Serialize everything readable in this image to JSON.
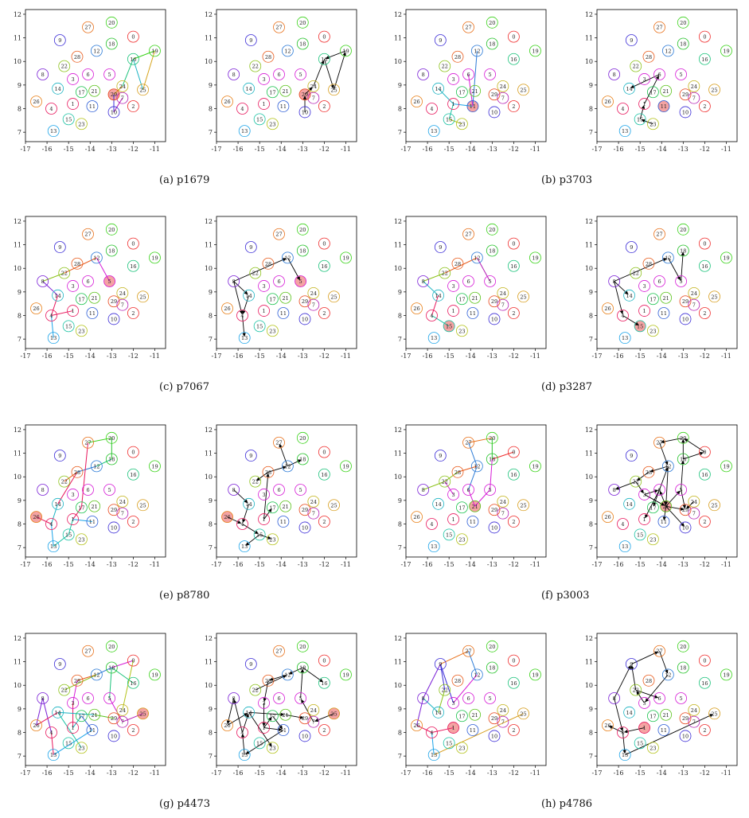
{
  "chart_data": {
    "type": "scatter",
    "x_ticks": [
      "-17",
      "-16",
      "-15",
      "-14",
      "-13",
      "-12",
      "-11"
    ],
    "y_ticks": [
      "7",
      "8",
      "9",
      "10",
      "11",
      "12"
    ],
    "xlim": [
      -17,
      -10.5
    ],
    "ylim": [
      6.6,
      12.2
    ],
    "nodes": [
      {
        "id": "0",
        "x": -12.0,
        "y": 11.05,
        "color": "#ef2b2b"
      },
      {
        "id": "1",
        "x": -14.8,
        "y": 8.2,
        "color": "#e8175d"
      },
      {
        "id": "2",
        "x": -12.0,
        "y": 8.1,
        "color": "#ef2b2b"
      },
      {
        "id": "3",
        "x": -14.8,
        "y": 9.25,
        "color": "#d61ad6"
      },
      {
        "id": "4",
        "x": -15.8,
        "y": 8.0,
        "color": "#e8175d"
      },
      {
        "id": "5",
        "x": -13.1,
        "y": 9.45,
        "color": "#d61ad6"
      },
      {
        "id": "6",
        "x": -14.1,
        "y": 9.45,
        "color": "#d61ad6"
      },
      {
        "id": "7",
        "x": -12.5,
        "y": 8.45,
        "color": "#b31ab3"
      },
      {
        "id": "8",
        "x": -16.2,
        "y": 9.45,
        "color": "#7a1fd6"
      },
      {
        "id": "9",
        "x": -15.4,
        "y": 10.9,
        "color": "#3a2bd6"
      },
      {
        "id": "10",
        "x": -12.9,
        "y": 7.85,
        "color": "#3a2bd6"
      },
      {
        "id": "11",
        "x": -13.9,
        "y": 8.1,
        "color": "#2b5cd6"
      },
      {
        "id": "12",
        "x": -13.7,
        "y": 10.45,
        "color": "#2b7ad6"
      },
      {
        "id": "13",
        "x": -15.7,
        "y": 7.05,
        "color": "#1aa3e8"
      },
      {
        "id": "14",
        "x": -15.5,
        "y": 8.85,
        "color": "#1ab3c2"
      },
      {
        "id": "15",
        "x": -15.0,
        "y": 7.55,
        "color": "#1ac2a3"
      },
      {
        "id": "16",
        "x": -12.0,
        "y": 10.1,
        "color": "#1ac27a"
      },
      {
        "id": "17",
        "x": -14.4,
        "y": 8.7,
        "color": "#1ac24d"
      },
      {
        "id": "18",
        "x": -13.0,
        "y": 10.75,
        "color": "#26c22b"
      },
      {
        "id": "19",
        "x": -11.0,
        "y": 10.45,
        "color": "#3ad21a"
      },
      {
        "id": "20",
        "x": -13.0,
        "y": 11.65,
        "color": "#3ad21a"
      },
      {
        "id": "21",
        "x": -13.8,
        "y": 8.75,
        "color": "#5ac21a"
      },
      {
        "id": "22",
        "x": -15.2,
        "y": 9.8,
        "color": "#8cc21a"
      },
      {
        "id": "23",
        "x": -14.4,
        "y": 7.35,
        "color": "#b3c21a"
      },
      {
        "id": "24",
        "x": -12.5,
        "y": 8.95,
        "color": "#c2b31a"
      },
      {
        "id": "25",
        "x": -11.55,
        "y": 8.8,
        "color": "#d69c1a"
      },
      {
        "id": "26",
        "x": -16.5,
        "y": 8.3,
        "color": "#e8801a"
      },
      {
        "id": "27",
        "x": -14.1,
        "y": 11.45,
        "color": "#e8701a"
      },
      {
        "id": "28",
        "x": -14.6,
        "y": 10.2,
        "color": "#e85a1a"
      },
      {
        "id": "29",
        "x": -12.9,
        "y": 8.6,
        "color": "#e8451a"
      }
    ],
    "panels": [
      {
        "caption": "(a)  p1679",
        "highlight": "29",
        "color_edges": [
          [
            "29",
            "24",
            "#d6a31a"
          ],
          [
            "24",
            "16",
            "#1ac27a"
          ],
          [
            "16",
            "25",
            "#1ab3c2"
          ],
          [
            "25",
            "19",
            "#d6a31a"
          ],
          [
            "19",
            "16",
            "#3ad21a"
          ],
          [
            "29",
            "10",
            "#3a2bd6"
          ],
          [
            "10",
            "7",
            "#b31ab3"
          ]
        ],
        "black_edges": [
          [
            "10",
            "29"
          ],
          [
            "29",
            "24"
          ],
          [
            "24",
            "16"
          ],
          [
            "16",
            "25"
          ],
          [
            "25",
            "19"
          ],
          [
            "19",
            "16"
          ]
        ]
      },
      {
        "caption": "(b)  p3703",
        "highlight": "11",
        "color_edges": [
          [
            "11",
            "12",
            "#2b7ad6"
          ],
          [
            "11",
            "1",
            "#1aa3e8"
          ],
          [
            "1",
            "15",
            "#1ac2a3"
          ],
          [
            "15",
            "23",
            "#b3c21a"
          ],
          [
            "1",
            "14",
            "#1ab3c2"
          ],
          [
            "11",
            "6",
            "#d61ad6"
          ]
        ],
        "black_edges": [
          [
            "23",
            "15"
          ],
          [
            "15",
            "1"
          ],
          [
            "1",
            "6"
          ],
          [
            "6",
            "14"
          ]
        ]
      },
      {
        "caption": "(c)  p7067",
        "highlight": "5",
        "color_edges": [
          [
            "8",
            "22",
            "#8cc21a"
          ],
          [
            "22",
            "12",
            "#e85a1a"
          ],
          [
            "12",
            "5",
            "#d61ad6"
          ],
          [
            "8",
            "14",
            "#7a1fd6"
          ],
          [
            "14",
            "4",
            "#e8175d"
          ],
          [
            "4",
            "13",
            "#1aa3e8"
          ],
          [
            "4",
            "1",
            "#e8175d"
          ]
        ],
        "black_edges": [
          [
            "8",
            "12"
          ],
          [
            "12",
            "5"
          ],
          [
            "8",
            "14"
          ],
          [
            "14",
            "4"
          ],
          [
            "4",
            "13"
          ],
          [
            "8",
            "4"
          ]
        ]
      },
      {
        "caption": "(d)  p3287",
        "highlight": "15",
        "color_edges": [
          [
            "8",
            "22",
            "#8cc21a"
          ],
          [
            "22",
            "12",
            "#e85a1a"
          ],
          [
            "12",
            "5",
            "#b31ab3"
          ],
          [
            "8",
            "14",
            "#1ab3c2"
          ],
          [
            "14",
            "4",
            "#e8175d"
          ],
          [
            "4",
            "15",
            "#1ac2a3"
          ]
        ],
        "black_edges": [
          [
            "8",
            "12"
          ],
          [
            "12",
            "5"
          ],
          [
            "5",
            "18"
          ],
          [
            "8",
            "14"
          ],
          [
            "8",
            "4"
          ],
          [
            "4",
            "15"
          ]
        ]
      },
      {
        "caption": "(e)  p8780",
        "highlight": "26",
        "color_edges": [
          [
            "26",
            "4",
            "#e8175d"
          ],
          [
            "4",
            "14",
            "#1ab3c2"
          ],
          [
            "14",
            "28",
            "#e8175d"
          ],
          [
            "28",
            "22",
            "#e85a1a"
          ],
          [
            "28",
            "12",
            "#2b7ad6"
          ],
          [
            "12",
            "18",
            "#1ac27a"
          ],
          [
            "18",
            "20",
            "#26c22b"
          ],
          [
            "20",
            "27",
            "#3ad21a"
          ],
          [
            "27",
            "17",
            "#e8175d"
          ],
          [
            "17",
            "1",
            "#e8175d"
          ],
          [
            "1",
            "11",
            "#1aa3e8"
          ],
          [
            "4",
            "13",
            "#1aa3e8"
          ],
          [
            "13",
            "15",
            "#1ac2a3"
          ],
          [
            "15",
            "1",
            "#1ac2a3"
          ]
        ],
        "black_edges": [
          [
            "26",
            "4"
          ],
          [
            "4",
            "15"
          ],
          [
            "15",
            "13"
          ],
          [
            "15",
            "23"
          ],
          [
            "1",
            "28"
          ],
          [
            "28",
            "22"
          ],
          [
            "28",
            "12"
          ],
          [
            "12",
            "27"
          ],
          [
            "12",
            "18"
          ],
          [
            "8",
            "14"
          ],
          [
            "14",
            "4"
          ],
          [
            "1",
            "17"
          ]
        ]
      },
      {
        "caption": "(f)  p3003",
        "highlight": "21",
        "color_edges": [
          [
            "21",
            "6",
            "#d61ad6"
          ],
          [
            "6",
            "12",
            "#2b7ad6"
          ],
          [
            "12",
            "28",
            "#e85a1a"
          ],
          [
            "28",
            "22",
            "#8cc21a"
          ],
          [
            "22",
            "3",
            "#d61ad6"
          ],
          [
            "21",
            "5",
            "#d61ad6"
          ],
          [
            "5",
            "18",
            "#d61ad6"
          ],
          [
            "18",
            "0",
            "#ef2b2b"
          ],
          [
            "18",
            "20",
            "#26c22b"
          ],
          [
            "20",
            "27",
            "#e8701a"
          ],
          [
            "27",
            "12",
            "#2b7ad6"
          ],
          [
            "8",
            "22",
            "#8cc21a"
          ]
        ],
        "black_edges": [
          [
            "21",
            "6"
          ],
          [
            "6",
            "12"
          ],
          [
            "12",
            "28"
          ],
          [
            "28",
            "22"
          ],
          [
            "22",
            "8"
          ],
          [
            "22",
            "3"
          ],
          [
            "3",
            "6"
          ],
          [
            "21",
            "5"
          ],
          [
            "5",
            "18"
          ],
          [
            "18",
            "20"
          ],
          [
            "20",
            "27"
          ],
          [
            "27",
            "12"
          ],
          [
            "18",
            "0"
          ],
          [
            "6",
            "1"
          ],
          [
            "21",
            "11"
          ],
          [
            "21",
            "10"
          ],
          [
            "6",
            "17"
          ],
          [
            "5",
            "29"
          ],
          [
            "24",
            "29"
          ],
          [
            "0",
            "20"
          ],
          [
            "12",
            "21"
          ],
          [
            "3",
            "21"
          ],
          [
            "21",
            "29"
          ]
        ]
      },
      {
        "caption": "(g)  p4473",
        "highlight": "25",
        "color_edges": [
          [
            "25",
            "7",
            "#b31ab3"
          ],
          [
            "7",
            "5",
            "#d61ad6"
          ],
          [
            "5",
            "18",
            "#1ac27a"
          ],
          [
            "18",
            "16",
            "#1ac27a"
          ],
          [
            "18",
            "0",
            "#d61ad6"
          ],
          [
            "0",
            "24",
            "#b3c21a"
          ],
          [
            "18",
            "12",
            "#2b7ad6"
          ],
          [
            "12",
            "28",
            "#e85a1a"
          ],
          [
            "28",
            "3",
            "#d61ad6"
          ],
          [
            "3",
            "1",
            "#e8175d"
          ],
          [
            "1",
            "17",
            "#1ab3c2"
          ],
          [
            "17",
            "11",
            "#2b5cd6"
          ],
          [
            "11",
            "13",
            "#1aa3e8"
          ],
          [
            "13",
            "4",
            "#e8175d"
          ],
          [
            "4",
            "8",
            "#7a1fd6"
          ],
          [
            "8",
            "26",
            "#7a1fd6"
          ],
          [
            "14",
            "23",
            "#1ac2a3"
          ],
          [
            "22",
            "12",
            "#8cc21a"
          ],
          [
            "26",
            "14",
            "#e8175d"
          ],
          [
            "14",
            "21",
            "#1ab3c2"
          ],
          [
            "21",
            "29",
            "#5ac21a"
          ]
        ],
        "black_edges": [
          [
            "25",
            "7"
          ],
          [
            "7",
            "5"
          ],
          [
            "5",
            "18"
          ],
          [
            "18",
            "16"
          ],
          [
            "18",
            "12"
          ],
          [
            "12",
            "28"
          ],
          [
            "28",
            "3"
          ],
          [
            "3",
            "1"
          ],
          [
            "1",
            "17"
          ],
          [
            "17",
            "11"
          ],
          [
            "11",
            "13"
          ],
          [
            "13",
            "4"
          ],
          [
            "4",
            "8"
          ],
          [
            "8",
            "26"
          ],
          [
            "26",
            "14"
          ],
          [
            "14",
            "21"
          ],
          [
            "21",
            "29"
          ],
          [
            "22",
            "12"
          ],
          [
            "14",
            "23"
          ],
          [
            "4",
            "14"
          ],
          [
            "1",
            "11"
          ]
        ]
      },
      {
        "caption": "(h)  p4786",
        "highlight": "1",
        "color_edges": [
          [
            "1",
            "4",
            "#e8175d"
          ],
          [
            "4",
            "13",
            "#1aa3e8"
          ],
          [
            "13",
            "25",
            "#d69c1a"
          ],
          [
            "4",
            "26",
            "#e8175d"
          ],
          [
            "26",
            "8",
            "#7a1fd6"
          ],
          [
            "8",
            "14",
            "#1ab3c2"
          ],
          [
            "14",
            "22",
            "#8cc21a"
          ],
          [
            "22",
            "9",
            "#3a2bd6"
          ],
          [
            "9",
            "27",
            "#e8701a"
          ],
          [
            "27",
            "12",
            "#2b7ad6"
          ],
          [
            "12",
            "3",
            "#d61ad6"
          ],
          [
            "3",
            "9",
            "#3a2bd6"
          ],
          [
            "8",
            "9",
            "#7a1fd6"
          ]
        ],
        "black_edges": [
          [
            "1",
            "4"
          ],
          [
            "4",
            "13"
          ],
          [
            "13",
            "25"
          ],
          [
            "4",
            "26"
          ],
          [
            "8",
            "4"
          ],
          [
            "8",
            "9"
          ],
          [
            "9",
            "27"
          ],
          [
            "27",
            "12"
          ],
          [
            "12",
            "3"
          ],
          [
            "3",
            "22"
          ],
          [
            "22",
            "9"
          ],
          [
            "22",
            "6"
          ]
        ]
      }
    ]
  }
}
